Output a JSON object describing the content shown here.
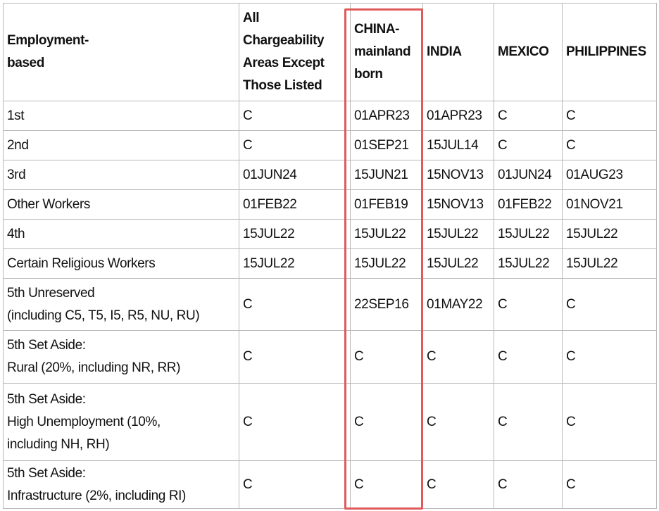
{
  "table": {
    "header": [
      "Employment-\nbased",
      "All\nChargeability\nAreas Except\nThose Listed",
      "CHINA-\nmainland\nborn",
      "INDIA",
      "MEXICO",
      "PHILIPPINES"
    ],
    "rows": [
      [
        "1st",
        "C",
        "01APR23",
        "01APR23",
        "C",
        "C"
      ],
      [
        "2nd",
        "C",
        "01SEP21",
        "15JUL14",
        "C",
        "C"
      ],
      [
        "3rd",
        "01JUN24",
        "15JUN21",
        "15NOV13",
        "01JUN24",
        "01AUG23"
      ],
      [
        "Other Workers",
        "01FEB22",
        "01FEB19",
        "15NOV13",
        "01FEB22",
        "01NOV21"
      ],
      [
        "4th",
        "15JUL22",
        "15JUL22",
        "15JUL22",
        "15JUL22",
        "15JUL22"
      ],
      [
        "Certain Religious Workers",
        "15JUL22",
        "15JUL22",
        "15JUL22",
        "15JUL22",
        "15JUL22"
      ],
      [
        "5th Unreserved\n(including C5, T5, I5, R5, NU, RU)",
        "C",
        "22SEP16",
        "01MAY22",
        "C",
        "C"
      ],
      [
        "5th Set Aside:\nRural (20%, including NR, RR)",
        "C",
        "C",
        "C",
        "C",
        "C"
      ],
      [
        "5th Set Aside:\nHigh Unemployment (10%,\nincluding NH, RH)",
        "C",
        "C",
        "C",
        "C",
        "C"
      ],
      [
        "5th Set Aside:\nInfrastructure (2%, including RI)",
        "C",
        "C",
        "C",
        "C",
        "C"
      ]
    ]
  }
}
